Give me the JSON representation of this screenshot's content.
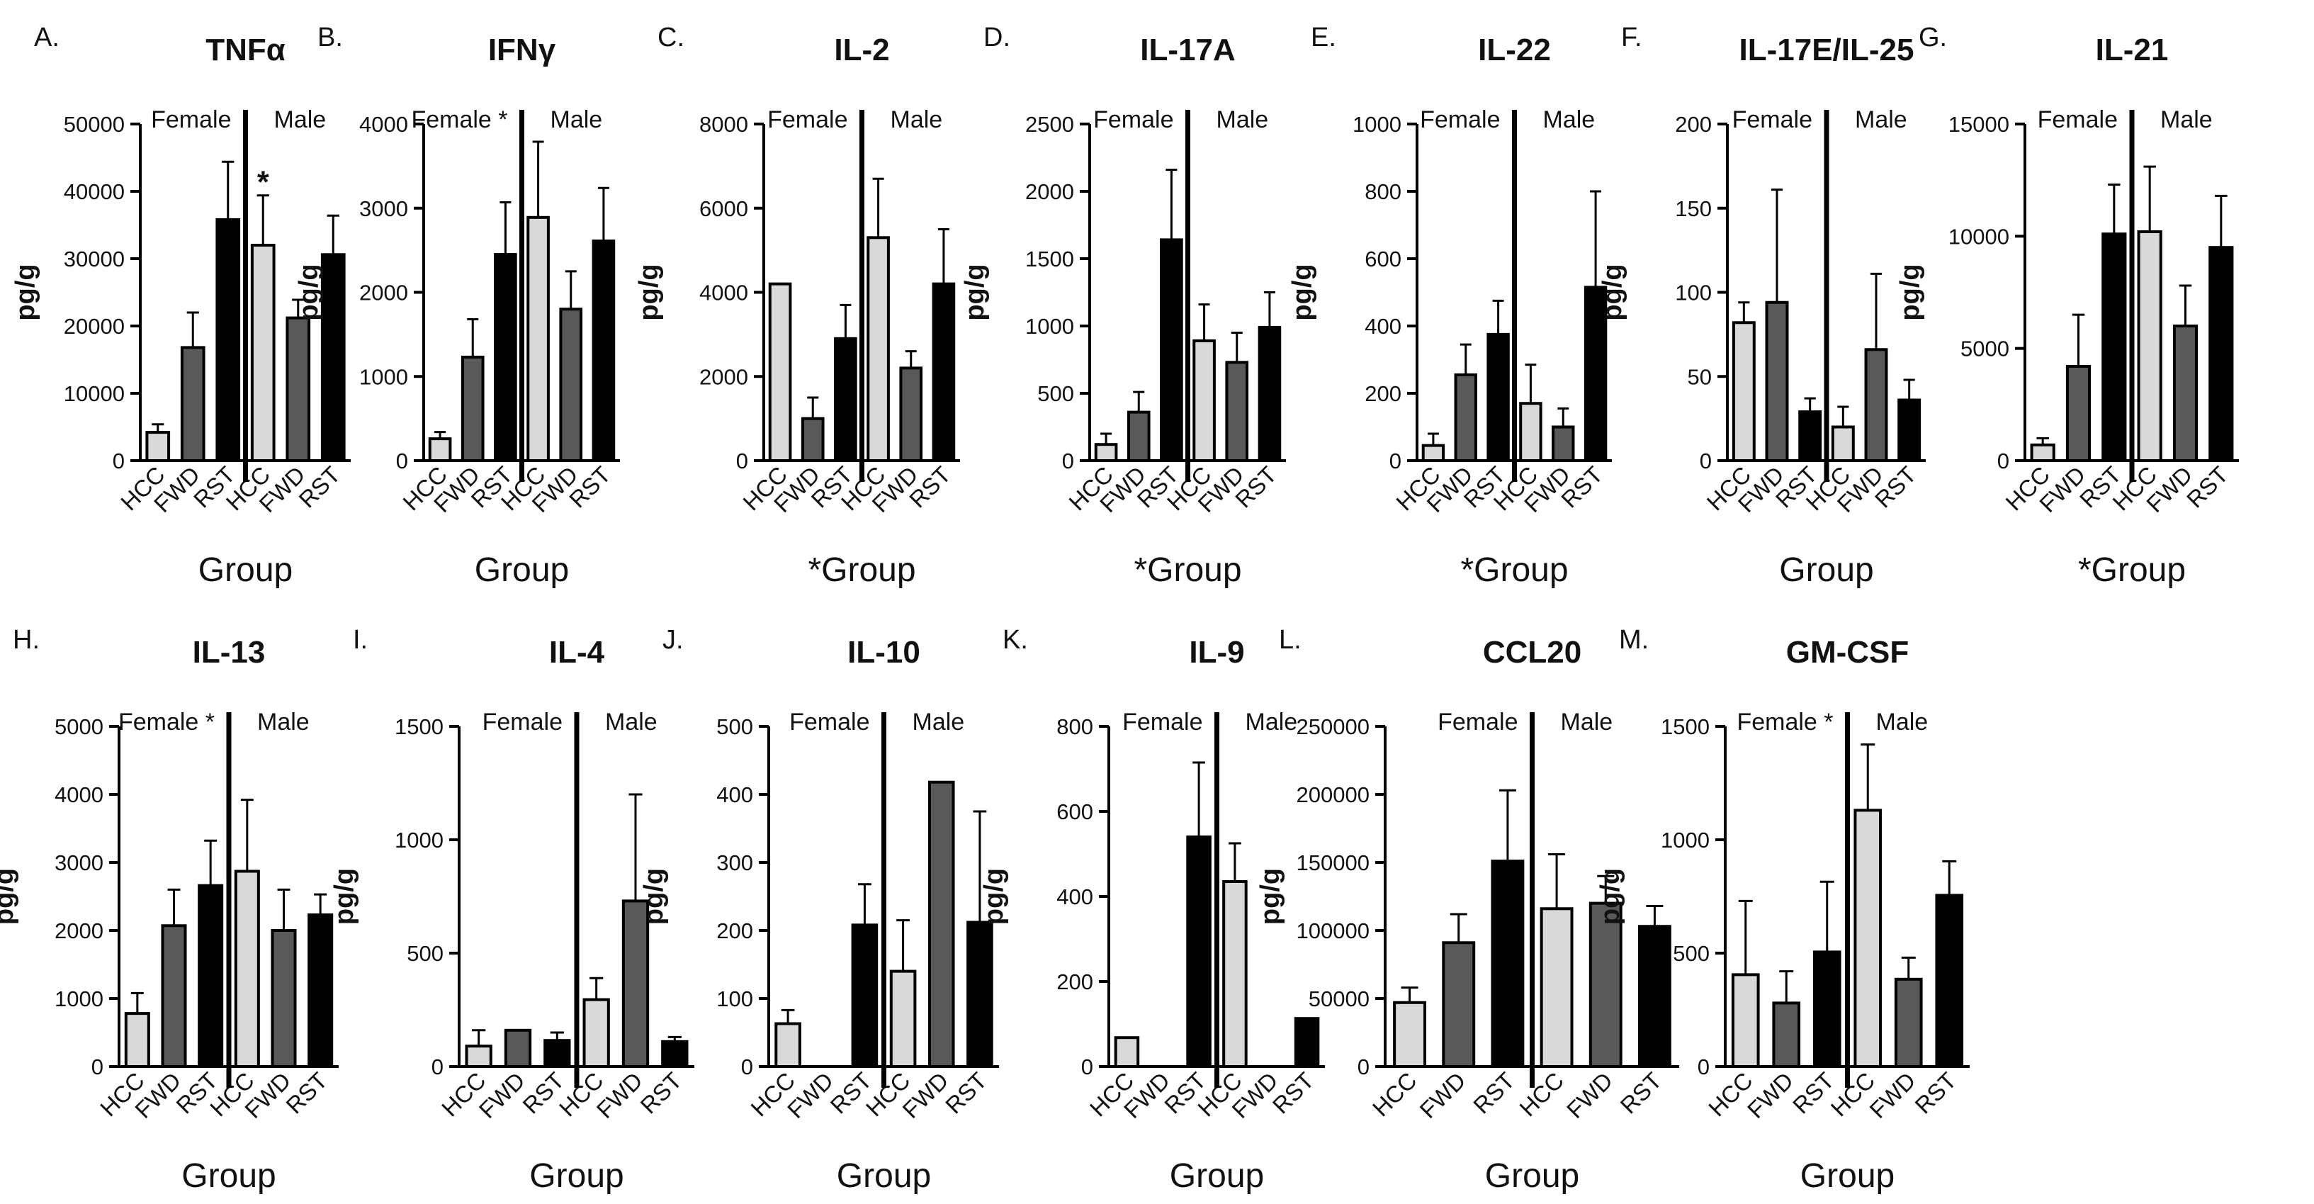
{
  "colors": {
    "HCC": "#d9d9d9",
    "FWD": "#595959",
    "RST": "#000000",
    "axis": "#000000"
  },
  "chart_data": [
    {
      "id": "A",
      "letter": "A.",
      "type": "bar",
      "title": "TNFα",
      "ylabel": "pg/g",
      "xlabel": "Group",
      "female_label": "Female",
      "male_label": "Male",
      "categories": [
        "HCC",
        "FWD",
        "RST",
        "HCC",
        "FWD",
        "RST"
      ],
      "groups": [
        "HCC",
        "FWD",
        "RST",
        "HCC",
        "FWD",
        "RST"
      ],
      "ylim": [
        0,
        50000
      ],
      "yticks": [
        0,
        10000,
        20000,
        30000,
        40000,
        50000
      ],
      "values": [
        4200,
        16800,
        35800,
        32000,
        21200,
        30600
      ],
      "errors": [
        1200,
        5200,
        8600,
        7400,
        2700,
        5800
      ],
      "marks": [
        {
          "bar": 3,
          "text": "*"
        }
      ]
    },
    {
      "id": "B",
      "letter": "B.",
      "type": "bar",
      "title": "IFNγ",
      "ylabel": "pg/g",
      "xlabel": "Group",
      "female_label": "Female *",
      "male_label": "Male",
      "categories": [
        "HCC",
        "FWD",
        "RST",
        "HCC",
        "FWD",
        "RST"
      ],
      "groups": [
        "HCC",
        "FWD",
        "RST",
        "HCC",
        "FWD",
        "RST"
      ],
      "ylim": [
        0,
        4000
      ],
      "yticks": [
        0,
        1000,
        2000,
        3000,
        4000
      ],
      "values": [
        260,
        1230,
        2450,
        2890,
        1800,
        2610
      ],
      "errors": [
        80,
        450,
        620,
        900,
        450,
        630
      ]
    },
    {
      "id": "C",
      "letter": "C.",
      "type": "bar",
      "title": "IL-2",
      "ylabel": "pg/g",
      "xlabel": "*Group",
      "female_label": "Female",
      "male_label": "Male",
      "categories": [
        "HCC",
        "FWD",
        "RST",
        "HCC",
        "FWD",
        "RST"
      ],
      "groups": [
        "HCC",
        "FWD",
        "RST",
        "HCC",
        "FWD",
        "RST"
      ],
      "ylim": [
        0,
        8000
      ],
      "yticks": [
        0,
        2000,
        4000,
        6000,
        8000
      ],
      "values": [
        4200,
        1000,
        2900,
        5300,
        2200,
        4200
      ],
      "errors": [
        0,
        500,
        800,
        1400,
        400,
        1300
      ]
    },
    {
      "id": "D",
      "letter": "D.",
      "type": "bar",
      "title": "IL-17A",
      "ylabel": "pg/g",
      "xlabel": "*Group",
      "female_label": "Female",
      "male_label": "Male",
      "categories": [
        "HCC",
        "FWD",
        "RST",
        "HCC",
        "FWD",
        "RST"
      ],
      "groups": [
        "HCC",
        "FWD",
        "RST",
        "HCC",
        "FWD",
        "RST"
      ],
      "ylim": [
        0,
        2500
      ],
      "yticks": [
        0,
        500,
        1000,
        1500,
        2000,
        2500
      ],
      "values": [
        120,
        360,
        1640,
        890,
        730,
        990
      ],
      "errors": [
        80,
        150,
        520,
        270,
        220,
        260
      ]
    },
    {
      "id": "E",
      "letter": "E.",
      "type": "bar",
      "title": "IL-22",
      "ylabel": "pg/g",
      "xlabel": "*Group",
      "female_label": "Female",
      "male_label": "Male",
      "categories": [
        "HCC",
        "FWD",
        "RST",
        "HCC",
        "FWD",
        "RST"
      ],
      "groups": [
        "HCC",
        "FWD",
        "RST",
        "HCC",
        "FWD",
        "RST"
      ],
      "ylim": [
        0,
        1000
      ],
      "yticks": [
        0,
        200,
        400,
        600,
        800,
        1000
      ],
      "values": [
        45,
        255,
        375,
        170,
        100,
        515
      ],
      "errors": [
        35,
        90,
        100,
        115,
        55,
        285
      ]
    },
    {
      "id": "F",
      "letter": "F.",
      "type": "bar",
      "title": "IL-17E/IL-25",
      "ylabel": "pg/g",
      "xlabel": "Group",
      "female_label": "Female",
      "male_label": "Male",
      "categories": [
        "HCC",
        "FWD",
        "RST",
        "HCC",
        "FWD",
        "RST"
      ],
      "groups": [
        "HCC",
        "FWD",
        "RST",
        "HCC",
        "FWD",
        "RST"
      ],
      "ylim": [
        0,
        200
      ],
      "yticks": [
        0,
        50,
        100,
        150,
        200
      ],
      "values": [
        82,
        94,
        29,
        20,
        66,
        36
      ],
      "errors": [
        12,
        67,
        8,
        12,
        45,
        12
      ]
    },
    {
      "id": "G",
      "letter": "G.",
      "type": "bar",
      "title": "IL-21",
      "ylabel": "pg/g",
      "xlabel": "*Group",
      "female_label": "Female",
      "male_label": "Male",
      "categories": [
        "HCC",
        "FWD",
        "RST",
        "HCC",
        "FWD",
        "RST"
      ],
      "groups": [
        "HCC",
        "FWD",
        "RST",
        "HCC",
        "FWD",
        "RST"
      ],
      "ylim": [
        0,
        15000
      ],
      "yticks": [
        0,
        5000,
        10000,
        15000
      ],
      "values": [
        700,
        4200,
        10100,
        10200,
        6000,
        9500
      ],
      "errors": [
        300,
        2300,
        2200,
        2900,
        1800,
        2300
      ]
    },
    {
      "id": "H",
      "letter": "H.",
      "type": "bar",
      "title": "IL-13",
      "ylabel": "pg/g",
      "xlabel": "Group",
      "female_label": "Female *",
      "male_label": "Male",
      "categories": [
        "HCC",
        "FWD",
        "RST",
        "HCC",
        "FWD",
        "RST"
      ],
      "groups": [
        "HCC",
        "FWD",
        "RST",
        "HCC",
        "FWD",
        "RST"
      ],
      "ylim": [
        0,
        5000
      ],
      "yticks": [
        0,
        1000,
        2000,
        3000,
        4000,
        5000
      ],
      "values": [
        780,
        2070,
        2660,
        2870,
        2000,
        2230
      ],
      "errors": [
        300,
        530,
        660,
        1050,
        600,
        300
      ]
    },
    {
      "id": "I",
      "letter": "I.",
      "type": "bar",
      "title": "IL-4",
      "ylabel": "pg/g",
      "xlabel": "Group",
      "female_label": "Female",
      "male_label": "Male",
      "categories": [
        "HCC",
        "FWD",
        "RST",
        "HCC",
        "FWD",
        "RST"
      ],
      "groups": [
        "HCC",
        "FWD",
        "RST",
        "HCC",
        "FWD",
        "RST"
      ],
      "ylim": [
        0,
        1500
      ],
      "yticks": [
        0,
        500,
        1000,
        1500
      ],
      "values": [
        90,
        160,
        115,
        295,
        730,
        110
      ],
      "errors": [
        70,
        0,
        35,
        95,
        470,
        20
      ]
    },
    {
      "id": "J",
      "letter": "J.",
      "type": "bar",
      "title": "IL-10",
      "ylabel": "pg/g",
      "xlabel": "Group",
      "female_label": "Female",
      "male_label": "Male",
      "categories": [
        "HCC",
        "FWD",
        "RST",
        "HCC",
        "FWD",
        "RST"
      ],
      "groups": [
        "HCC",
        "FWD",
        "RST",
        "HCC",
        "FWD",
        "RST"
      ],
      "ylim": [
        0,
        500
      ],
      "yticks": [
        0,
        100,
        200,
        300,
        400,
        500
      ],
      "values": [
        63,
        0,
        208,
        140,
        418,
        212
      ],
      "errors": [
        20,
        0,
        60,
        75,
        0,
        163
      ]
    },
    {
      "id": "K",
      "letter": "K.",
      "type": "bar",
      "title": "IL-9",
      "ylabel": "pg/g",
      "xlabel": "Group",
      "female_label": "Female",
      "male_label": "Male",
      "categories": [
        "HCC",
        "FWD",
        "RST",
        "HCC",
        "FWD",
        "RST"
      ],
      "groups": [
        "HCC",
        "FWD",
        "RST",
        "HCC",
        "FWD",
        "RST"
      ],
      "ylim": [
        0,
        800
      ],
      "yticks": [
        0,
        200,
        400,
        600,
        800
      ],
      "values": [
        68,
        0,
        540,
        435,
        0,
        113
      ],
      "errors": [
        0,
        0,
        175,
        90,
        0,
        0
      ]
    },
    {
      "id": "L",
      "letter": "L.",
      "type": "bar",
      "title": "CCL20",
      "ylabel": "pg/g",
      "xlabel": "Group",
      "female_label": "Female",
      "male_label": "Male",
      "categories": [
        "HCC",
        "FWD",
        "RST",
        "HCC",
        "FWD",
        "RST"
      ],
      "groups": [
        "HCC",
        "FWD",
        "RST",
        "HCC",
        "FWD",
        "RST"
      ],
      "ylim": [
        0,
        250000
      ],
      "yticks": [
        0,
        50000,
        100000,
        150000,
        200000,
        250000
      ],
      "values": [
        47000,
        91000,
        151000,
        116000,
        120000,
        103000
      ],
      "errors": [
        11000,
        21000,
        52000,
        40000,
        20000,
        15000
      ]
    },
    {
      "id": "M",
      "letter": "M.",
      "type": "bar",
      "title": "GM-CSF",
      "ylabel": "pg/g",
      "xlabel": "Group",
      "female_label": "Female *",
      "male_label": "Male",
      "categories": [
        "HCC",
        "FWD",
        "RST",
        "HCC",
        "FWD",
        "RST"
      ],
      "groups": [
        "HCC",
        "FWD",
        "RST",
        "HCC",
        "FWD",
        "RST"
      ],
      "ylim": [
        0,
        1500
      ],
      "yticks": [
        0,
        500,
        1000,
        1500
      ],
      "values": [
        405,
        280,
        505,
        1130,
        385,
        755
      ],
      "errors": [
        325,
        140,
        310,
        290,
        95,
        150
      ]
    }
  ]
}
